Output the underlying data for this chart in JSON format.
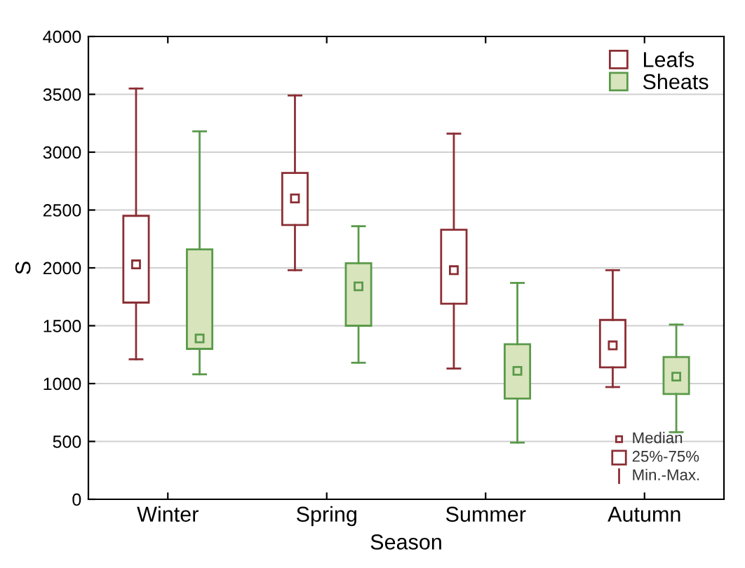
{
  "chart_data": {
    "type": "box",
    "xlabel": "Season",
    "ylabel": "S",
    "categories": [
      "Winter",
      "Spring",
      "Summer",
      "Autumn"
    ],
    "series": [
      {
        "name": "Leafs",
        "color": "#8b2e34",
        "boxes": [
          {
            "low": 1210,
            "q1": 1700,
            "median": 2030,
            "q3": 2450,
            "high": 3550
          },
          {
            "low": 1980,
            "q1": 2370,
            "median": 2600,
            "q3": 2820,
            "high": 3490
          },
          {
            "low": 1130,
            "q1": 1690,
            "median": 1980,
            "q3": 2330,
            "high": 3160
          },
          {
            "low": 970,
            "q1": 1140,
            "median": 1330,
            "q3": 1550,
            "high": 1980
          }
        ]
      },
      {
        "name": "Sheats",
        "color": "#5a9a4a",
        "boxes": [
          {
            "low": 1080,
            "q1": 1300,
            "median": 1390,
            "q3": 2160,
            "high": 3180
          },
          {
            "low": 1180,
            "q1": 1500,
            "median": 1840,
            "q3": 2040,
            "high": 2360
          },
          {
            "low": 490,
            "q1": 870,
            "median": 1110,
            "q3": 1340,
            "high": 1870
          },
          {
            "low": 580,
            "q1": 910,
            "median": 1060,
            "q3": 1230,
            "high": 1510
          }
        ]
      }
    ],
    "ylim": [
      0,
      4000
    ],
    "yticks": [
      0,
      500,
      1000,
      1500,
      2000,
      2500,
      3000,
      3500,
      4000
    ],
    "grid": "y",
    "legend": "top right",
    "marker": "square",
    "annotations": [
      "Median",
      "25%-75%",
      "Min.-Max."
    ]
  }
}
